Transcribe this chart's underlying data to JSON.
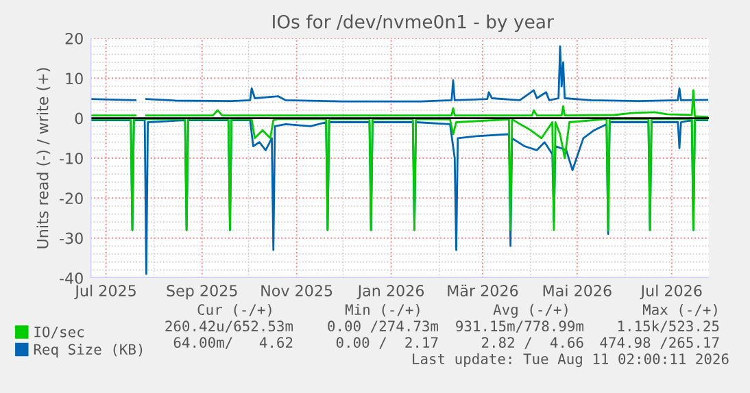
{
  "chart_data": {
    "type": "line",
    "title": "IOs for /dev/nvme0n1 - by year",
    "ylabel": "Units read (-) / write (+)",
    "xlim": [
      "2025-06-21",
      "2026-07-25"
    ],
    "xticks": [
      {
        "value": "2025-07-01",
        "label": "Jul 2025"
      },
      {
        "value": "2025-09-01",
        "label": "Sep 2025"
      },
      {
        "value": "2025-11-01",
        "label": "Nov 2025"
      },
      {
        "value": "2026-01-01",
        "label": "Jan 2026"
      },
      {
        "value": "2026-03-01",
        "label": "Mär 2026"
      },
      {
        "value": "2026-05-01",
        "label": "Mai 2026"
      },
      {
        "value": "2026-07-01",
        "label": "Jul 2026"
      }
    ],
    "ylim": [
      -40,
      20
    ],
    "yticks": [
      -40,
      -30,
      -20,
      -10,
      0,
      10,
      20
    ],
    "grid": true,
    "legend": "bottom",
    "line_style": "solid",
    "marker": "none",
    "ref_lines": [
      {
        "axis": "y",
        "value": 0,
        "color": "#000000"
      }
    ],
    "series": [
      {
        "color": "#0066b3",
        "x": [
          "2025-06-21",
          "2025-07-17",
          "2025-07-18",
          "2025-07-19",
          "2025-07-26",
          "2025-07-27",
          "2025-07-28",
          "2025-08-21",
          "2025-08-22",
          "2025-08-23",
          "2025-09-18",
          "2025-09-19",
          "2025-09-20",
          "2025-10-02",
          "2025-10-04",
          "2025-10-08",
          "2025-10-12",
          "2025-10-16",
          "2025-10-17",
          "2025-10-18",
          "2025-10-25",
          "2025-11-10",
          "2025-11-20",
          "2025-11-21",
          "2025-11-22",
          "2025-12-18",
          "2025-12-19",
          "2025-12-20",
          "2026-01-15",
          "2026-01-16",
          "2026-01-17",
          "2026-02-08",
          "2026-02-11",
          "2026-02-12",
          "2026-02-13",
          "2026-02-25",
          "2026-03-18",
          "2026-03-19",
          "2026-03-20",
          "2026-03-28",
          "2026-04-05",
          "2026-04-10",
          "2026-04-15",
          "2026-04-16",
          "2026-04-17",
          "2026-04-24",
          "2026-04-28",
          "2026-05-05",
          "2026-05-12",
          "2026-05-20",
          "2026-05-21",
          "2026-05-22",
          "2026-06-16",
          "2026-06-17",
          "2026-06-18",
          "2026-07-05",
          "2026-07-06",
          "2026-07-07",
          "2026-07-14",
          "2026-07-15",
          "2026-07-16",
          "2026-07-24"
        ],
        "values": [
          -0.5,
          -0.5,
          -28,
          -0.5,
          -0.5,
          -39,
          -1,
          -0.5,
          -28,
          -0.5,
          -0.5,
          -28,
          -0.5,
          -0.5,
          -7,
          -6,
          -8,
          -5,
          -33,
          -2,
          -1.5,
          -2,
          -1,
          -28,
          -1,
          -1,
          -28,
          -1,
          -1,
          -28,
          -1,
          -1.5,
          -10,
          -33,
          -5,
          -4.5,
          -4,
          -32,
          -5,
          -7,
          -8,
          -6,
          -9,
          -26,
          -7,
          -8,
          -13,
          -5,
          -3,
          -1.5,
          -29,
          -1,
          -1,
          -28,
          -1,
          -1,
          -7.5,
          -1,
          -0.5,
          -28,
          -0.5,
          -0.5
        ]
      },
      {
        "color": "#00cc00",
        "x": [
          "2025-06-21",
          "2025-07-17",
          "2025-07-18",
          "2025-07-19",
          "2025-08-21",
          "2025-08-22",
          "2025-08-23",
          "2025-09-18",
          "2025-09-19",
          "2025-09-20",
          "2025-10-03",
          "2025-10-05",
          "2025-10-10",
          "2025-10-15",
          "2025-10-17",
          "2025-10-20",
          "2025-11-20",
          "2025-11-21",
          "2025-11-22",
          "2025-12-18",
          "2025-12-19",
          "2025-12-20",
          "2026-01-15",
          "2026-01-16",
          "2026-01-17",
          "2026-02-08",
          "2026-02-10",
          "2026-02-12",
          "2026-03-18",
          "2026-03-19",
          "2026-03-20",
          "2026-04-01",
          "2026-04-08",
          "2026-04-15",
          "2026-04-16",
          "2026-04-17",
          "2026-04-20",
          "2026-04-23",
          "2026-04-26",
          "2026-05-20",
          "2026-05-21",
          "2026-05-22",
          "2026-06-16",
          "2026-06-17",
          "2026-06-18",
          "2026-07-14",
          "2026-07-15",
          "2026-07-16",
          "2026-07-24"
        ],
        "values": [
          -0.2,
          -0.2,
          -28,
          -0.2,
          -0.2,
          -28,
          -0.2,
          -0.2,
          -28,
          -0.2,
          -0.3,
          -5,
          -3,
          -5,
          -0.5,
          -0.2,
          -0.2,
          -28,
          -0.2,
          -0.2,
          -28,
          -0.2,
          -0.2,
          -28,
          -0.2,
          -0.3,
          -4,
          -1,
          -0.3,
          -28,
          -0.3,
          -3,
          -5,
          -1,
          -28,
          -1,
          -4,
          -10,
          -1,
          -0.2,
          -28,
          -0.2,
          -0.2,
          -28,
          -0.2,
          -0.2,
          -28,
          -0.2,
          -0.2
        ]
      },
      {
        "name": "Req Size (KB)",
        "color": "#0066b3",
        "x": [
          "2025-06-21",
          "2025-07-20",
          "2025-07-22",
          "2025-07-27",
          "2025-08-15",
          "2025-09-20",
          "2025-10-02",
          "2025-10-03",
          "2025-10-05",
          "2025-10-20",
          "2025-10-25",
          "2025-12-01",
          "2026-01-20",
          "2026-02-09",
          "2026-02-10",
          "2026-02-11",
          "2026-03-04",
          "2026-03-05",
          "2026-03-07",
          "2026-03-25",
          "2026-04-03",
          "2026-04-05",
          "2026-04-11",
          "2026-04-13",
          "2026-04-19",
          "2026-04-20",
          "2026-04-21",
          "2026-04-22",
          "2026-04-23",
          "2026-05-10",
          "2026-06-10",
          "2026-07-05",
          "2026-07-06",
          "2026-07-07",
          "2026-07-24"
        ],
        "values": [
          4.8,
          4.5,
          null,
          4.8,
          4.4,
          4.3,
          4.5,
          7.5,
          5,
          5.5,
          4.5,
          4.2,
          4.2,
          4.5,
          9.5,
          4.5,
          4.8,
          6.5,
          5,
          4.5,
          7,
          5,
          6.5,
          4.5,
          5,
          18,
          8,
          14,
          5,
          4.5,
          4.3,
          4.5,
          7.5,
          4.5,
          4.6
        ]
      },
      {
        "name": "IO/sec",
        "color": "#00cc00",
        "x": [
          "2025-06-21",
          "2025-07-20",
          "2025-07-22",
          "2025-07-27",
          "2025-09-08",
          "2025-09-11",
          "2025-09-14",
          "2026-02-09",
          "2026-02-10",
          "2026-02-11",
          "2026-04-02",
          "2026-04-03",
          "2026-04-05",
          "2026-04-21",
          "2026-04-22",
          "2026-04-23",
          "2026-05-25",
          "2026-06-05",
          "2026-06-20",
          "2026-06-28",
          "2026-07-14",
          "2026-07-15",
          "2026-07-16",
          "2026-07-24"
        ],
        "values": [
          0.7,
          0.7,
          null,
          0.7,
          0.7,
          2,
          0.7,
          0.7,
          2.5,
          0.7,
          0.7,
          2,
          0.7,
          0.7,
          3,
          0.7,
          0.8,
          1.3,
          1.5,
          1,
          0.8,
          7,
          0.5,
          0.3
        ]
      }
    ],
    "annotations": [
      "Cur (-/+)",
      "Min (-/+)",
      "Avg (-/+)",
      "Max (-/+)",
      "260.42u/652.53m",
      "0.00 /274.73m",
      "931.15m/778.99m",
      "1.15k/523.25",
      "64.00m/   4.62",
      "0.00 /  2.17",
      "2.82 /  4.66",
      "474.98 /265.17",
      "Last update: Tue Aug 11 02:00:11 2026"
    ]
  }
}
